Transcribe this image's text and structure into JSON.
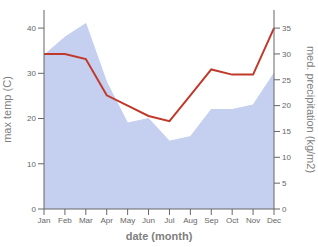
{
  "chart_data": {
    "type": "area",
    "xlabel": "date (month)",
    "ylabel": "max temp (C)",
    "y2label": "med. precipitation (kg/m2)",
    "categories": [
      "Jan",
      "Feb",
      "Mar",
      "Apr",
      "May",
      "Jun",
      "Jul",
      "Aug",
      "Sep",
      "Oct",
      "Nov",
      "Dec"
    ],
    "series": [
      {
        "type": "area",
        "color": "#c5cff0",
        "values": [
          34,
          38,
          41,
          28,
          19,
          20,
          15,
          16,
          22,
          22,
          23,
          30
        ]
      },
      {
        "type": "line",
        "color": "#c0392b",
        "axis": "y2",
        "values": [
          30,
          30,
          29,
          22,
          20,
          18,
          17,
          22,
          27,
          26,
          26,
          35
        ]
      }
    ],
    "ylim": [
      0,
      44
    ],
    "yticks": [
      0,
      10,
      20,
      30,
      40
    ],
    "y2lim": [
      0,
      38.5
    ],
    "y2ticks": [
      0,
      5,
      10,
      15,
      20,
      25,
      30,
      35
    ],
    "grid": false
  }
}
